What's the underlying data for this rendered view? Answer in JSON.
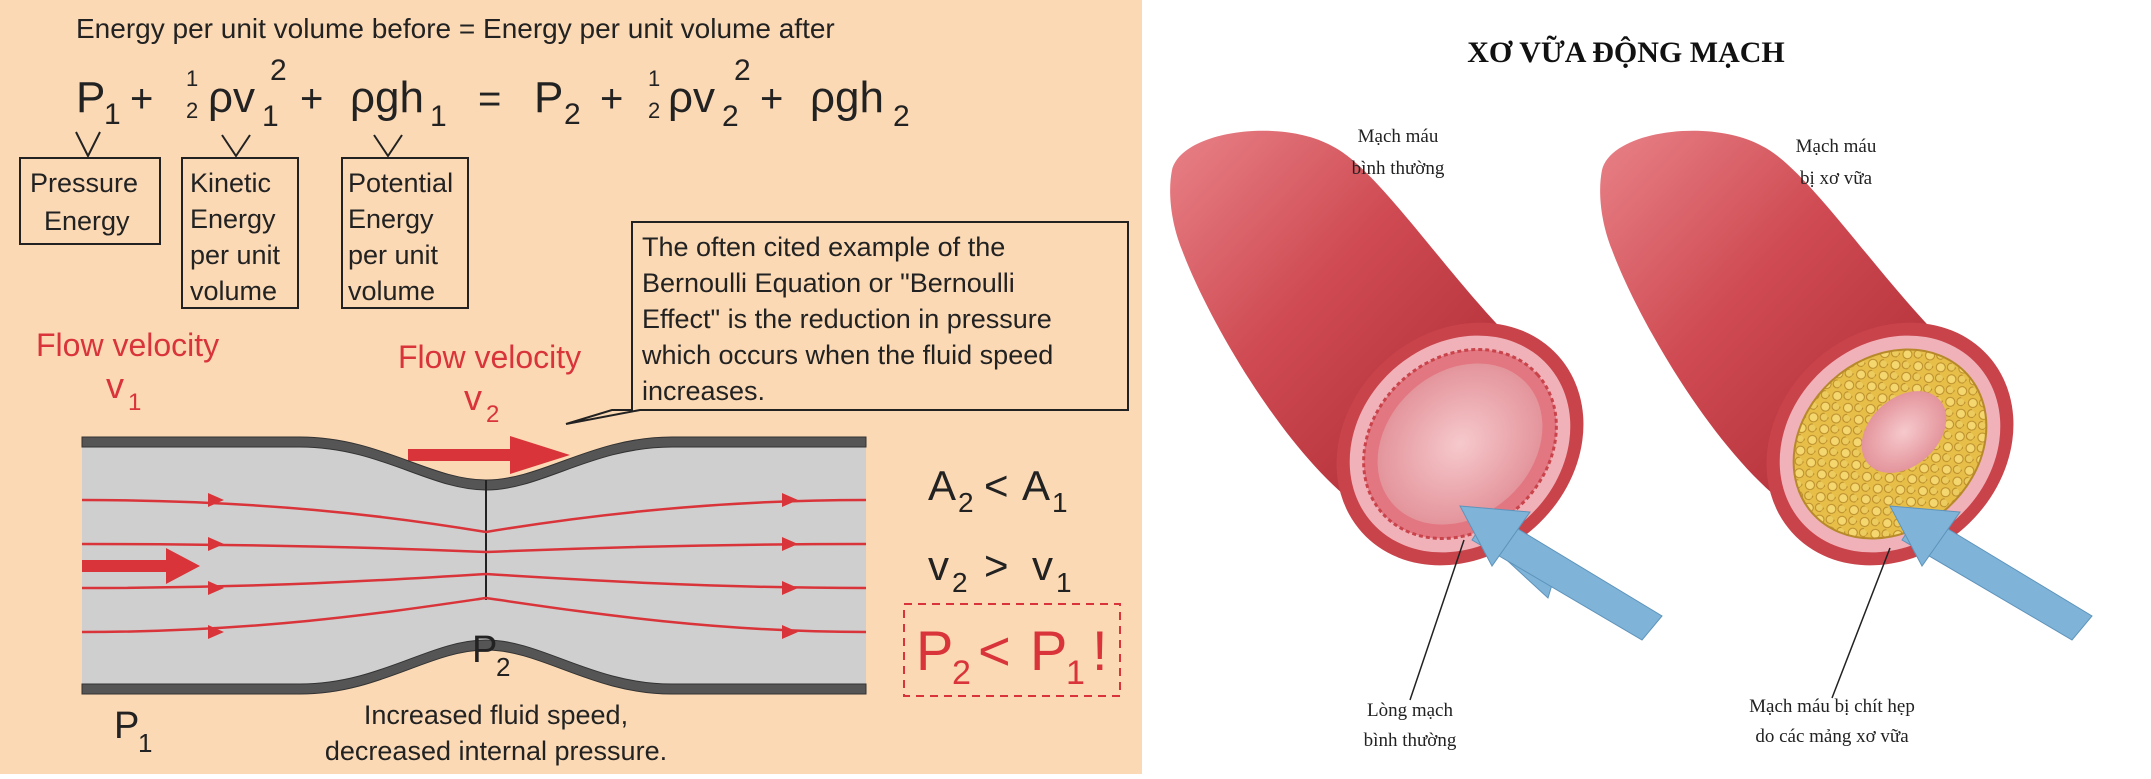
{
  "bernoulli": {
    "heading": "Energy per unit volume before = Energy per unit volume after",
    "equation": {
      "p1": "P",
      "p1_sub": "1",
      "plus": "+",
      "half_num": "1",
      "half_den": "2",
      "rho_v": "ρv",
      "v1_sub": "1",
      "sq": "2",
      "rho_gh": "ρgh",
      "h1_sub": "1",
      "equals": "=",
      "p2": "P",
      "p2_sub": "2",
      "v2_sub": "2",
      "h2_sub": "2"
    },
    "pressure_box": [
      "Pressure",
      "Energy"
    ],
    "kinetic_box": [
      "Kinetic",
      "Energy",
      "per unit",
      "volume"
    ],
    "potential_box": [
      "Potential",
      "Energy",
      "per unit",
      "volume"
    ],
    "callout": [
      "The often cited example of the",
      "Bernoulli Equation or \"Bernoulli",
      "Effect\" is the reduction in pressure",
      "which occurs when the fluid speed",
      "increases."
    ],
    "flow1_label": "Flow velocity",
    "flow1_symbol": "v",
    "flow1_sub": "1",
    "flow2_label": "Flow velocity",
    "flow2_symbol": "v",
    "flow2_sub": "2",
    "rel_area": {
      "a": "A",
      "a_sub": "2",
      "op": "<",
      "b": "A",
      "b_sub": "1"
    },
    "rel_vel": {
      "a": "v",
      "a_sub": "2",
      "op": ">",
      "b": "v",
      "b_sub": "1"
    },
    "rel_pres": {
      "a": "P",
      "a_sub": "2",
      "op": "<",
      "b": "P",
      "b_sub": "1",
      "bang": "!"
    },
    "p2_label": "P",
    "p2_label_sub": "2",
    "p1_label": "P",
    "p1_label_sub": "1",
    "caption": [
      "Increased fluid speed,",
      "decreased internal pressure."
    ],
    "colors": {
      "background": "#fbd9b5",
      "accent_red": "#d9343a",
      "pipe_fill": "#cfcfcf",
      "pipe_wall": "#555555"
    }
  },
  "artery": {
    "title": "XƠ VỮA ĐỘNG MẠCH",
    "normal_top_label": [
      "Mạch máu",
      "bình thường"
    ],
    "diseased_top_label": [
      "Mạch máu",
      "bị xơ vữa"
    ],
    "normal_bottom_label": [
      "Lòng mạch",
      "bình thường"
    ],
    "diseased_bottom_label": [
      "Mạch máu bị chít hẹp",
      "do các mảng xơ vữa"
    ],
    "colors": {
      "vessel": "#c9434b",
      "lumen": "#e9a6ac",
      "plaque": "#e8c24a",
      "arrow": "#7fb4d8"
    }
  }
}
